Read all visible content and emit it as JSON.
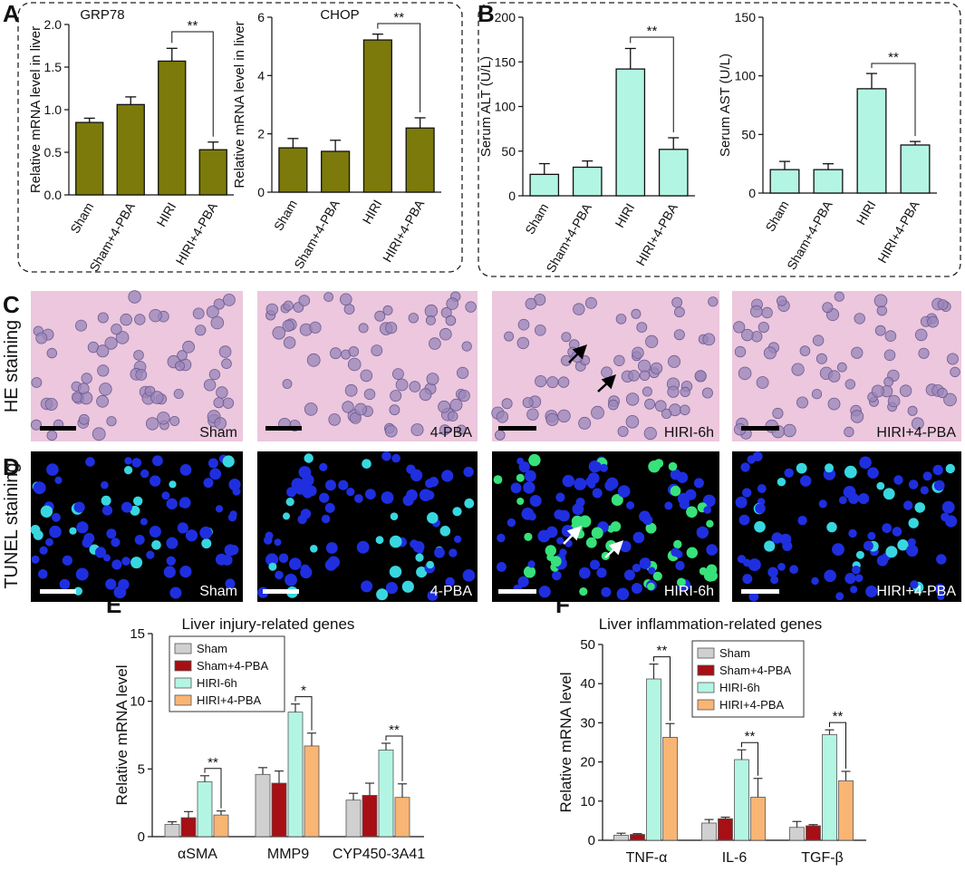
{
  "panel_letters": {
    "A": "A",
    "B": "B",
    "C": "C",
    "D": "D",
    "E": "E",
    "F": "F"
  },
  "row_labels": {
    "he": "HE staining",
    "tunel": "TUNEL staining"
  },
  "colors": {
    "olive": "#7b7a0a",
    "mint": "#b3f5e3",
    "gray": "#d0d0d0",
    "darkred": "#a60f14",
    "peach": "#f8b574",
    "he_bg": "#ecc7dd",
    "tunel_bg": "#000000"
  },
  "micro_labels": {
    "he": [
      "Sham",
      "4-PBA",
      "HIRI-6h",
      "HIRI+4-PBA"
    ],
    "tunel": [
      "Sham",
      "4-PBA",
      "HIRI-6h",
      "HIRI+4-PBA"
    ]
  },
  "chart_data": [
    {
      "id": "A1",
      "type": "bar",
      "title": "GRP78",
      "ylabel": "Relative  mRNA level in liver",
      "categories": [
        "Sham",
        "Sham+4-PBA",
        "HIRI",
        "HIRI+4-PBA"
      ],
      "values": [
        0.85,
        1.06,
        1.57,
        0.53
      ],
      "errors": [
        0.05,
        0.09,
        0.15,
        0.09
      ],
      "ylim": [
        0,
        2.0
      ],
      "yticks": [
        "0.0",
        "0.5",
        "1.0",
        "1.5",
        "2.0"
      ],
      "ytick_values": [
        0,
        0.5,
        1.0,
        1.5,
        2.0
      ],
      "significance": {
        "from": 2,
        "to": 3,
        "label": "**"
      }
    },
    {
      "id": "A2",
      "type": "bar",
      "title": "CHOP",
      "ylabel": "Relative  mRNA level in liver",
      "categories": [
        "Sham",
        "Sham+4-PBA",
        "HIRI",
        "HIRI+4-PBA"
      ],
      "values": [
        1.52,
        1.4,
        5.22,
        2.2
      ],
      "errors": [
        0.32,
        0.38,
        0.2,
        0.35
      ],
      "ylim": [
        0,
        6
      ],
      "yticks": [
        "0",
        "2",
        "4",
        "6"
      ],
      "ytick_values": [
        0,
        2,
        4,
        6
      ],
      "significance": {
        "from": 2,
        "to": 3,
        "label": "**"
      }
    },
    {
      "id": "B1",
      "type": "bar",
      "title": "",
      "ylabel": "Serum ALT (U/L)",
      "categories": [
        "Sham",
        "Sham+4-PBA",
        "HIRI",
        "HIRI+4-PBA"
      ],
      "values": [
        24,
        32,
        142,
        52
      ],
      "errors": [
        12,
        7,
        23,
        13
      ],
      "ylim": [
        0,
        200
      ],
      "yticks": [
        "0",
        "50",
        "100",
        "150",
        "200"
      ],
      "ytick_values": [
        0,
        50,
        100,
        150,
        200
      ],
      "significance": {
        "from": 2,
        "to": 3,
        "label": "**"
      }
    },
    {
      "id": "B2",
      "type": "bar",
      "title": "",
      "ylabel": "Serum AST (U/L)",
      "categories": [
        "Sham",
        "Sham+4-PBA",
        "HIRI",
        "HIRI+4-PBA"
      ],
      "values": [
        20,
        20,
        89,
        41
      ],
      "errors": [
        7,
        5,
        13,
        3
      ],
      "ylim": [
        0,
        150
      ],
      "yticks": [
        "0",
        "50",
        "100",
        "150"
      ],
      "ytick_values": [
        0,
        50,
        100,
        150
      ],
      "significance": {
        "from": 2,
        "to": 3,
        "label": "**"
      }
    },
    {
      "id": "E",
      "type": "bar",
      "title": "Liver injury-related genes",
      "ylabel": "Relative  mRNA level",
      "categories": [
        "αSMA",
        "MMP9",
        "CYP450-3A41"
      ],
      "series": [
        {
          "name": "Sham",
          "values": [
            0.9,
            4.6,
            2.7
          ],
          "errors": [
            0.2,
            0.5,
            0.5
          ]
        },
        {
          "name": "Sham+4-PBA",
          "values": [
            1.4,
            3.95,
            3.05
          ],
          "errors": [
            0.45,
            0.9,
            0.9
          ]
        },
        {
          "name": "HIRI-6h",
          "values": [
            4.05,
            9.2,
            6.4
          ],
          "errors": [
            0.45,
            0.6,
            0.5
          ]
        },
        {
          "name": "HIRI+4-PBA",
          "values": [
            1.6,
            6.7,
            2.9
          ],
          "errors": [
            0.3,
            0.95,
            1.0
          ]
        }
      ],
      "ylim": [
        0,
        15
      ],
      "yticks": [
        "0",
        "5",
        "10",
        "15"
      ],
      "ytick_values": [
        0,
        5,
        10,
        15
      ],
      "significance": [
        {
          "group": 0,
          "label": "**"
        },
        {
          "group": 1,
          "label": "*"
        },
        {
          "group": 2,
          "label": "**"
        }
      ]
    },
    {
      "id": "F",
      "type": "bar",
      "title": "Liver inflammation-related genes",
      "ylabel": "Relative  mRNA level",
      "categories": [
        "TNF-α",
        "IL-6",
        "TGF-β"
      ],
      "series": [
        {
          "name": "Sham",
          "values": [
            1.3,
            4.4,
            3.3
          ],
          "errors": [
            0.5,
            0.9,
            1.5
          ]
        },
        {
          "name": "Sham+4-PBA",
          "values": [
            1.5,
            5.5,
            3.7
          ],
          "errors": [
            0.2,
            0.4,
            0.3
          ]
        },
        {
          "name": "HIRI-6h",
          "values": [
            41.2,
            20.6,
            27.0
          ],
          "errors": [
            3.8,
            2.5,
            1.2
          ]
        },
        {
          "name": "HIRI+4-PBA",
          "values": [
            26.3,
            11.0,
            15.2
          ],
          "errors": [
            3.5,
            4.8,
            2.4
          ]
        }
      ],
      "ylim": [
        0,
        50
      ],
      "yticks": [
        "0",
        "10",
        "20",
        "30",
        "40",
        "50"
      ],
      "ytick_values": [
        0,
        10,
        20,
        30,
        40,
        50
      ],
      "significance": [
        {
          "group": 0,
          "label": "**"
        },
        {
          "group": 1,
          "label": "**"
        },
        {
          "group": 2,
          "label": "**"
        }
      ]
    }
  ]
}
